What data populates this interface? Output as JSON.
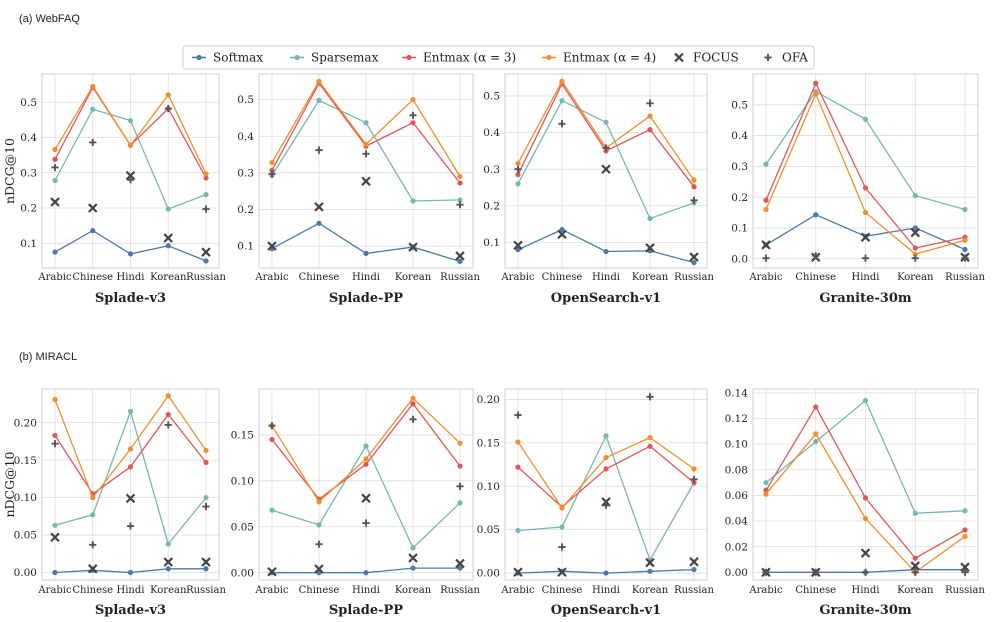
{
  "sections": [
    {
      "label": "(a) WebFAQ"
    },
    {
      "label": "(b) MIRACL"
    }
  ],
  "legend": {
    "items": [
      {
        "name": "Softmax",
        "kind": "line",
        "color": "#4e79a7"
      },
      {
        "name": "Sparsemax",
        "kind": "line",
        "color": "#76b7b2"
      },
      {
        "name": "Entmax (α = 3)",
        "kind": "line",
        "color": "#e15759"
      },
      {
        "name": "Entmax (α = 4)",
        "kind": "line",
        "color": "#f28e2b"
      },
      {
        "name": "FOCUS",
        "kind": "x",
        "color": "#444444"
      },
      {
        "name": "OFA",
        "kind": "plus",
        "color": "#555555"
      }
    ]
  },
  "chart_data": [
    {
      "type": "line",
      "section": 0,
      "title": "Splade-v3",
      "ylabel": "nDCG@10",
      "categories": [
        "Arabic",
        "Chinese",
        "Hindi",
        "Korean",
        "Russian"
      ],
      "ylim": [
        0.03,
        0.58
      ],
      "yticks": [
        0.1,
        0.2,
        0.3,
        0.4,
        0.5
      ],
      "tickfmt": 1,
      "series": [
        {
          "name": "Softmax",
          "values": [
            0.075,
            0.136,
            0.07,
            0.093,
            0.05
          ]
        },
        {
          "name": "Sparsemax",
          "values": [
            0.278,
            0.48,
            0.448,
            0.197,
            0.238
          ]
        },
        {
          "name": "Entmax (α = 3)",
          "values": [
            0.338,
            0.542,
            0.378,
            0.482,
            0.285
          ]
        },
        {
          "name": "Entmax (α = 4)",
          "values": [
            0.366,
            0.545,
            0.378,
            0.521,
            0.297
          ]
        },
        {
          "name": "FOCUS",
          "values": [
            0.217,
            0.2,
            0.292,
            0.115,
            0.075
          ]
        },
        {
          "name": "OFA",
          "values": [
            0.315,
            0.386,
            0.28,
            0.482,
            0.197
          ]
        }
      ]
    },
    {
      "type": "line",
      "section": 0,
      "title": "Splade-PP",
      "ylabel": "",
      "categories": [
        "Arabic",
        "Chinese",
        "Hindi",
        "Korean",
        "Russian"
      ],
      "ylim": [
        0.04,
        0.57
      ],
      "yticks": [
        0.1,
        0.2,
        0.3,
        0.4,
        0.5
      ],
      "tickfmt": 1,
      "series": [
        {
          "name": "Softmax",
          "values": [
            0.093,
            0.162,
            0.08,
            0.097,
            0.058
          ]
        },
        {
          "name": "Sparsemax",
          "values": [
            0.293,
            0.498,
            0.437,
            0.223,
            0.226
          ]
        },
        {
          "name": "Entmax (α = 3)",
          "values": [
            0.307,
            0.545,
            0.373,
            0.437,
            0.272
          ]
        },
        {
          "name": "Entmax (α = 4)",
          "values": [
            0.328,
            0.55,
            0.378,
            0.5,
            0.29
          ]
        },
        {
          "name": "FOCUS",
          "values": [
            0.1,
            0.207,
            0.277,
            0.097,
            0.073
          ]
        },
        {
          "name": "OFA",
          "values": [
            0.297,
            0.362,
            0.352,
            0.457,
            0.213
          ]
        }
      ]
    },
    {
      "type": "line",
      "section": 0,
      "title": "OpenSearch-v1",
      "ylabel": "",
      "categories": [
        "Arabic",
        "Chinese",
        "Hindi",
        "Korean",
        "Russian"
      ],
      "ylim": [
        0.03,
        0.56
      ],
      "yticks": [
        0.1,
        0.2,
        0.3,
        0.4,
        0.5
      ],
      "tickfmt": 1,
      "series": [
        {
          "name": "Softmax",
          "values": [
            0.08,
            0.135,
            0.075,
            0.077,
            0.045
          ]
        },
        {
          "name": "Sparsemax",
          "values": [
            0.26,
            0.487,
            0.428,
            0.165,
            0.208
          ]
        },
        {
          "name": "Entmax (α = 3)",
          "values": [
            0.285,
            0.533,
            0.35,
            0.408,
            0.252
          ]
        },
        {
          "name": "Entmax (α = 4)",
          "values": [
            0.316,
            0.54,
            0.358,
            0.445,
            0.27
          ]
        },
        {
          "name": "FOCUS",
          "values": [
            0.092,
            0.122,
            0.3,
            0.085,
            0.06
          ]
        },
        {
          "name": "OFA",
          "values": [
            0.3,
            0.424,
            0.358,
            0.48,
            0.215
          ]
        }
      ]
    },
    {
      "type": "line",
      "section": 0,
      "title": "Granite-30m",
      "ylabel": "",
      "categories": [
        "Arabic",
        "Chinese",
        "Hindi",
        "Korean",
        "Russian"
      ],
      "ylim": [
        -0.03,
        0.6
      ],
      "yticks": [
        0.0,
        0.1,
        0.2,
        0.3,
        0.4,
        0.5
      ],
      "tickfmt": 1,
      "series": [
        {
          "name": "Softmax",
          "values": [
            0.045,
            0.143,
            0.073,
            0.1,
            0.03
          ]
        },
        {
          "name": "Sparsemax",
          "values": [
            0.307,
            0.543,
            0.453,
            0.205,
            0.16
          ]
        },
        {
          "name": "Entmax (α = 3)",
          "values": [
            0.19,
            0.57,
            0.23,
            0.035,
            0.07
          ]
        },
        {
          "name": "Entmax (α = 4)",
          "values": [
            0.16,
            0.535,
            0.15,
            0.015,
            0.06
          ]
        },
        {
          "name": "FOCUS",
          "values": [
            0.045,
            0.005,
            0.07,
            0.085,
            0.005
          ]
        },
        {
          "name": "OFA",
          "values": [
            0.002,
            0.01,
            0.002,
            0.002,
            0.002
          ]
        }
      ]
    },
    {
      "type": "line",
      "section": 1,
      "title": "Splade-v3",
      "ylabel": "nDCG@10",
      "categories": [
        "Arabic",
        "Chinese",
        "Hindi",
        "Korean",
        "Russian"
      ],
      "ylim": [
        -0.01,
        0.245
      ],
      "yticks": [
        0.0,
        0.05,
        0.1,
        0.15,
        0.2
      ],
      "tickfmt": 2,
      "series": [
        {
          "name": "Softmax",
          "values": [
            0.0,
            0.003,
            0.0,
            0.005,
            0.005
          ]
        },
        {
          "name": "Sparsemax",
          "values": [
            0.063,
            0.077,
            0.215,
            0.038,
            0.1
          ]
        },
        {
          "name": "Entmax (α = 3)",
          "values": [
            0.183,
            0.105,
            0.141,
            0.211,
            0.147
          ]
        },
        {
          "name": "Entmax (α = 4)",
          "values": [
            0.231,
            0.1,
            0.165,
            0.236,
            0.163
          ]
        },
        {
          "name": "FOCUS",
          "values": [
            0.047,
            0.005,
            0.099,
            0.014,
            0.014
          ]
        },
        {
          "name": "OFA",
          "values": [
            0.172,
            0.037,
            0.062,
            0.197,
            0.088
          ]
        }
      ]
    },
    {
      "type": "line",
      "section": 1,
      "title": "Splade-PP",
      "ylabel": "",
      "categories": [
        "Arabic",
        "Chinese",
        "Hindi",
        "Korean",
        "Russian"
      ],
      "ylim": [
        -0.008,
        0.2
      ],
      "yticks": [
        0.0,
        0.05,
        0.1,
        0.15
      ],
      "tickfmt": 2,
      "series": [
        {
          "name": "Softmax",
          "values": [
            0.0,
            0.0,
            0.0,
            0.005,
            0.005
          ]
        },
        {
          "name": "Sparsemax",
          "values": [
            0.068,
            0.052,
            0.138,
            0.027,
            0.076
          ]
        },
        {
          "name": "Entmax (α = 3)",
          "values": [
            0.145,
            0.08,
            0.118,
            0.184,
            0.116
          ]
        },
        {
          "name": "Entmax (α = 4)",
          "values": [
            0.16,
            0.077,
            0.124,
            0.19,
            0.141
          ]
        },
        {
          "name": "FOCUS",
          "values": [
            0.001,
            0.004,
            0.081,
            0.016,
            0.01
          ]
        },
        {
          "name": "OFA",
          "values": [
            0.16,
            0.031,
            0.054,
            0.167,
            0.094
          ]
        }
      ]
    },
    {
      "type": "line",
      "section": 1,
      "title": "OpenSearch-v1",
      "ylabel": "",
      "categories": [
        "Arabic",
        "Chinese",
        "Hindi",
        "Korean",
        "Russian"
      ],
      "ylim": [
        -0.008,
        0.212
      ],
      "yticks": [
        0.0,
        0.05,
        0.1,
        0.15,
        0.2
      ],
      "tickfmt": 2,
      "series": [
        {
          "name": "Softmax",
          "values": [
            0.0,
            0.002,
            0.0,
            0.002,
            0.004
          ]
        },
        {
          "name": "Sparsemax",
          "values": [
            0.049,
            0.053,
            0.158,
            0.015,
            0.104
          ]
        },
        {
          "name": "Entmax (α = 3)",
          "values": [
            0.122,
            0.076,
            0.12,
            0.146,
            0.104
          ]
        },
        {
          "name": "Entmax (α = 4)",
          "values": [
            0.151,
            0.075,
            0.133,
            0.156,
            0.12
          ]
        },
        {
          "name": "FOCUS",
          "values": [
            0.001,
            0.001,
            0.082,
            0.012,
            0.013
          ]
        },
        {
          "name": "OFA",
          "values": [
            0.182,
            0.03,
            0.078,
            0.203,
            0.108
          ]
        }
      ]
    },
    {
      "type": "line",
      "section": 1,
      "title": "Granite-30m",
      "ylabel": "",
      "categories": [
        "Arabic",
        "Chinese",
        "Hindi",
        "Korean",
        "Russian"
      ],
      "ylim": [
        -0.006,
        0.143
      ],
      "yticks": [
        0.0,
        0.02,
        0.04,
        0.06,
        0.08,
        0.1,
        0.12,
        0.14
      ],
      "tickfmt": 2,
      "series": [
        {
          "name": "Softmax",
          "values": [
            0.0,
            0.0,
            0.0,
            0.002,
            0.002
          ]
        },
        {
          "name": "Sparsemax",
          "values": [
            0.07,
            0.102,
            0.134,
            0.046,
            0.048
          ]
        },
        {
          "name": "Entmax (α = 3)",
          "values": [
            0.064,
            0.129,
            0.058,
            0.011,
            0.033
          ]
        },
        {
          "name": "Entmax (α = 4)",
          "values": [
            0.061,
            0.108,
            0.042,
            0.0,
            0.028
          ]
        },
        {
          "name": "FOCUS",
          "values": [
            0.0,
            0.0,
            0.015,
            0.005,
            0.004
          ]
        },
        {
          "name": "OFA",
          "values": [
            0.0,
            0.0,
            0.0,
            0.0,
            0.0
          ]
        }
      ]
    }
  ]
}
